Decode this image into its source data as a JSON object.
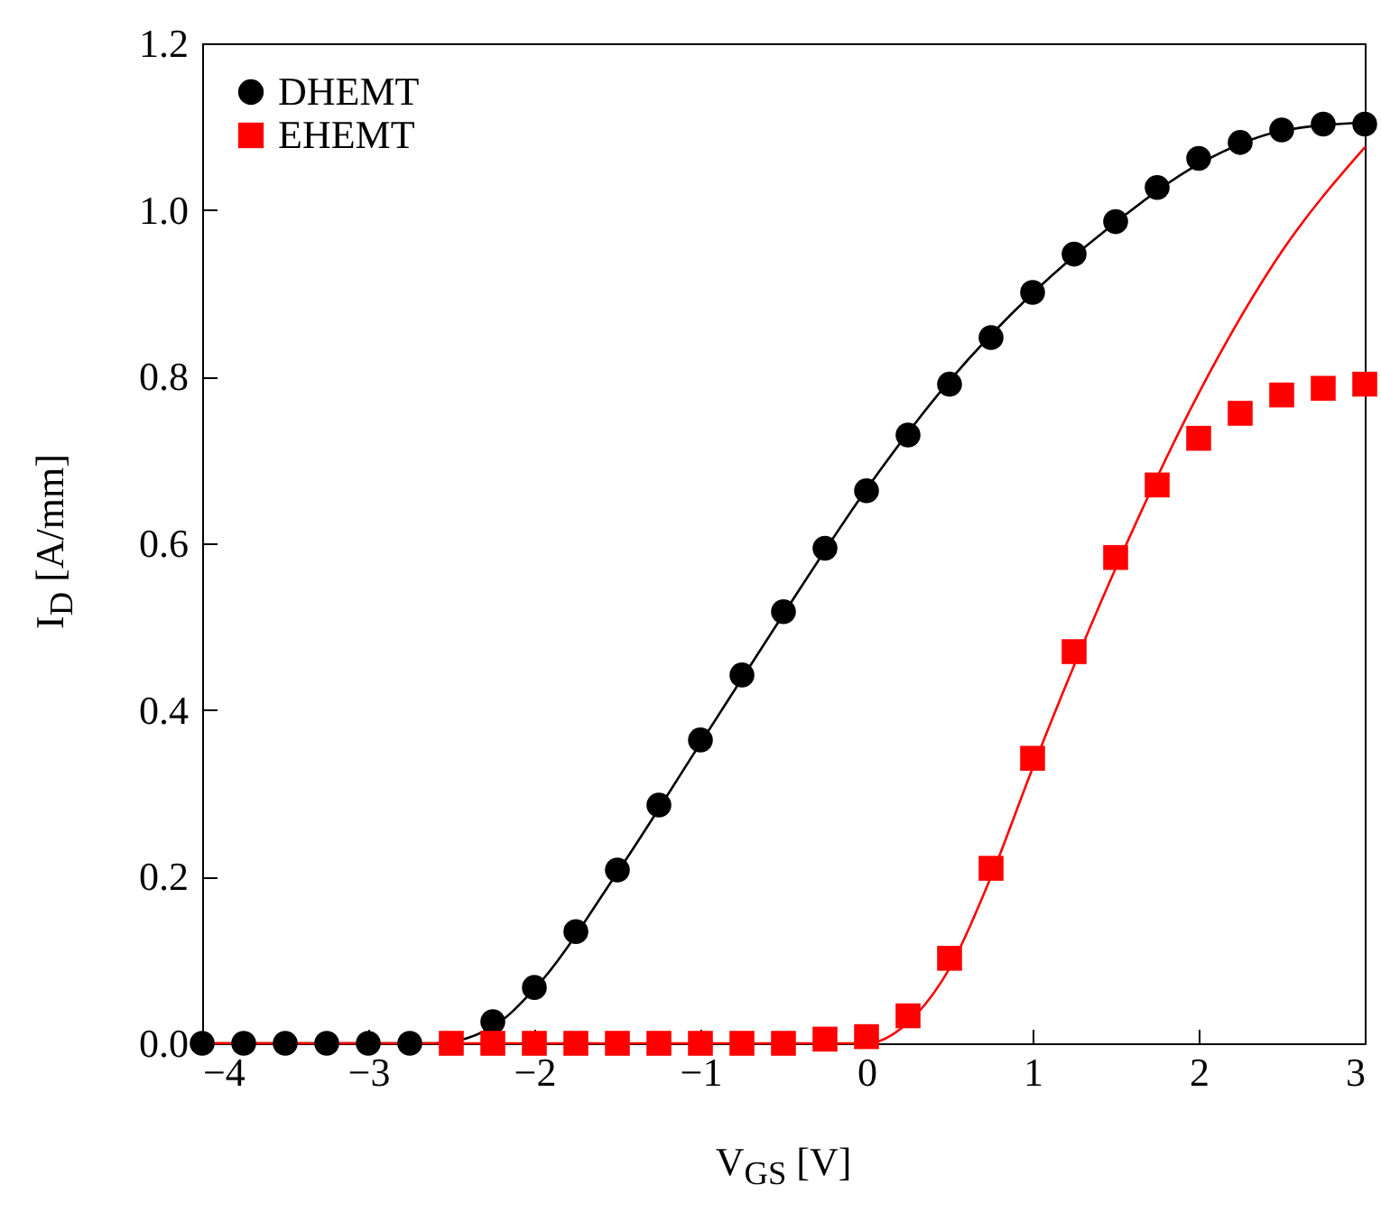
{
  "chart_data": {
    "type": "scatter",
    "xlabel": "V$_{GS}$ [V]",
    "ylabel": "I$_{D}$ [A/mm]",
    "xlim": [
      -4,
      3
    ],
    "ylim": [
      0,
      1.2
    ],
    "xticks": [
      {
        "value": -4,
        "label": "−4"
      },
      {
        "value": -3,
        "label": "−3"
      },
      {
        "value": -2,
        "label": "−2"
      },
      {
        "value": -1,
        "label": "−1"
      },
      0,
      1,
      2,
      3
    ],
    "yticks": [
      {
        "value": 0,
        "label": "0.0"
      },
      {
        "value": 0.2,
        "label": "0.2"
      },
      {
        "value": 0.4,
        "label": "0.4"
      },
      {
        "value": 0.6,
        "label": "0.6"
      },
      {
        "value": 0.8,
        "label": "0.8"
      },
      {
        "value": 1,
        "label": "1.0"
      },
      {
        "value": 1.2,
        "label": "1.2"
      }
    ],
    "grid": false,
    "legend": "top left",
    "series": [
      {
        "type": "line",
        "color": "#000000",
        "x": [
          -4,
          -2.6,
          -2.25,
          -2,
          -1.5,
          -1,
          -0.5,
          0,
          0.5,
          1,
          1.5,
          2,
          2.5,
          3
        ],
        "values": [
          0,
          0,
          0.02,
          0.065,
          0.205,
          0.36,
          0.515,
          0.665,
          0.795,
          0.9,
          0.985,
          1.055,
          1.095,
          1.105
        ]
      },
      {
        "type": "line",
        "color": "#ff0000",
        "x": [
          -4,
          0,
          0.25,
          0.5,
          0.75,
          1,
          1.5,
          2,
          2.5,
          3
        ],
        "values": [
          0,
          0,
          0.025,
          0.09,
          0.2,
          0.33,
          0.57,
          0.78,
          0.95,
          1.075
        ]
      },
      {
        "name": "DHEMT",
        "color": "#000000",
        "marker": "circle",
        "x": [
          -4,
          -3.75,
          -3.5,
          -3.25,
          -3,
          -2.75,
          -2.5,
          -2.25,
          -2,
          -1.75,
          -1.5,
          -1.25,
          -1,
          -0.75,
          -0.5,
          -0.25,
          0,
          0.25,
          0.5,
          0.75,
          1,
          1.25,
          1.5,
          1.75,
          2,
          2.25,
          2.5,
          2.75,
          3
        ],
        "values": [
          0,
          0,
          0,
          0,
          0,
          0,
          null,
          0.026,
          0.067,
          0.134,
          0.208,
          0.286,
          0.364,
          0.442,
          0.518,
          0.594,
          0.663,
          0.73,
          0.791,
          0.847,
          0.901,
          0.947,
          0.986,
          1.027,
          1.062,
          1.081,
          1.096,
          1.103,
          1.103
        ]
      },
      {
        "name": "EHEMT",
        "color": "#ff0000",
        "marker": "square",
        "x": [
          -2.5,
          -2.25,
          -2,
          -1.75,
          -1.5,
          -1.25,
          -1,
          -0.75,
          -0.5,
          -0.25,
          0,
          0.25,
          0.5,
          0.75,
          1,
          1.25,
          1.5,
          1.75,
          2,
          2.25,
          2.5,
          2.75,
          3
        ],
        "values": [
          0,
          0,
          0,
          0,
          0,
          0,
          0,
          0,
          0,
          0.005,
          0.008,
          0.033,
          0.102,
          0.21,
          0.342,
          0.47,
          0.583,
          0.67,
          0.726,
          0.756,
          0.778,
          0.786,
          0.791
        ]
      }
    ]
  }
}
